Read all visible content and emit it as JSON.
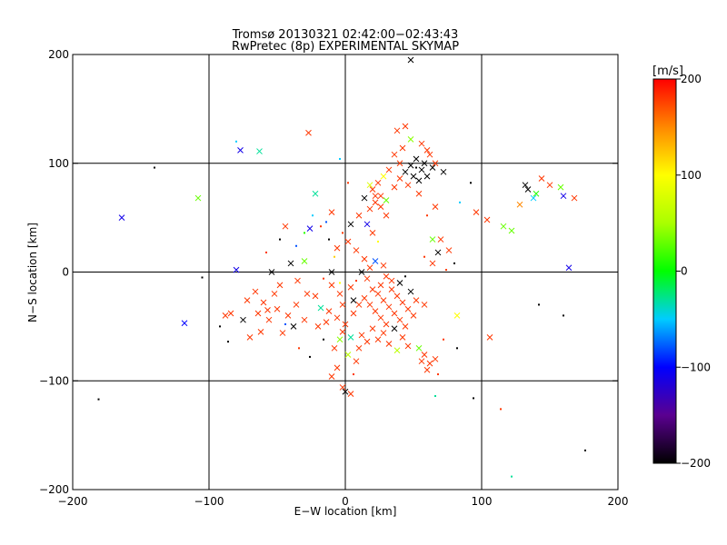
{
  "chart_data": {
    "type": "scatter",
    "title": "Tromsø 20130321 02:42:00−02:43:43",
    "subtitle": "RwPretec (8p) EXPERIMENTAL SKYMAP",
    "xlabel": "E−W location [km]",
    "ylabel": "N−S location [km]",
    "xlim": [
      -200,
      200
    ],
    "ylim": [
      -200,
      200
    ],
    "xticks": [
      -200,
      -100,
      0,
      100,
      200
    ],
    "yticks": [
      -200,
      -100,
      0,
      100,
      200
    ],
    "xtick_labels": [
      "−200",
      "−100",
      "0",
      "100",
      "200"
    ],
    "ytick_labels": [
      "−200",
      "−100",
      "0",
      "100",
      "200"
    ],
    "grid": true,
    "colorbar": {
      "label": "[m/s]",
      "range": [
        -200,
        200
      ],
      "ticks": [
        200,
        100,
        0,
        -100,
        -200
      ],
      "tick_labels": [
        "200",
        "100",
        "0",
        "−100",
        "−200"
      ]
    },
    "markers": {
      "cross": "x",
      "small": "dot"
    },
    "points": [
      [
        -164,
        50,
        -110,
        "x"
      ],
      [
        -108,
        68,
        30,
        "x"
      ],
      [
        -118,
        -47,
        -100,
        "x"
      ],
      [
        -140,
        96,
        -200,
        "dot"
      ],
      [
        -181,
        -117,
        -200,
        "dot"
      ],
      [
        -105,
        -5,
        -200,
        "dot"
      ],
      [
        -80,
        120,
        -50,
        "dot"
      ],
      [
        -77,
        112,
        -110,
        "x"
      ],
      [
        -63,
        111,
        -30,
        "x"
      ],
      [
        -27,
        128,
        180,
        "x"
      ],
      [
        -22,
        72,
        -30,
        "x"
      ],
      [
        -80,
        2,
        -110,
        "x"
      ],
      [
        -75,
        -44,
        -200,
        "x"
      ],
      [
        -84,
        -38,
        180,
        "x"
      ],
      [
        -70,
        -60,
        180,
        "x"
      ],
      [
        -62,
        -55,
        180,
        "x"
      ],
      [
        -57,
        -35,
        180,
        "x"
      ],
      [
        -52,
        -20,
        180,
        "x"
      ],
      [
        -46,
        -56,
        180,
        "x"
      ],
      [
        -44,
        42,
        180,
        "x"
      ],
      [
        -40,
        8,
        -200,
        "x"
      ],
      [
        -35,
        -8,
        180,
        "x"
      ],
      [
        -30,
        10,
        30,
        "x"
      ],
      [
        -26,
        40,
        -110,
        "x"
      ],
      [
        -22,
        -22,
        180,
        "x"
      ],
      [
        -18,
        -33,
        -30,
        "x"
      ],
      [
        -14,
        -46,
        180,
        "x"
      ],
      [
        -10,
        0,
        -200,
        "x"
      ],
      [
        -6,
        22,
        180,
        "x"
      ],
      [
        -2,
        -55,
        180,
        "x"
      ],
      [
        -28,
        -20,
        180,
        "x"
      ],
      [
        -36,
        -30,
        180,
        "x"
      ],
      [
        -42,
        -40,
        180,
        "x"
      ],
      [
        -48,
        -12,
        180,
        "x"
      ],
      [
        -54,
        0,
        -200,
        "x"
      ],
      [
        -60,
        -28,
        180,
        "x"
      ],
      [
        -66,
        -18,
        180,
        "x"
      ],
      [
        -72,
        -26,
        180,
        "x"
      ],
      [
        -88,
        -40,
        180,
        "x"
      ],
      [
        -92,
        -50,
        -200,
        "dot"
      ],
      [
        -86,
        -64,
        -200,
        "dot"
      ],
      [
        -58,
        18,
        180,
        "dot"
      ],
      [
        -48,
        30,
        -200,
        "dot"
      ],
      [
        -36,
        24,
        -80,
        "dot"
      ],
      [
        -30,
        36,
        10,
        "dot"
      ],
      [
        -24,
        52,
        -50,
        "dot"
      ],
      [
        -18,
        42,
        180,
        "dot"
      ],
      [
        -12,
        30,
        -200,
        "dot"
      ],
      [
        -8,
        14,
        120,
        "dot"
      ],
      [
        -4,
        -10,
        100,
        "dot"
      ],
      [
        -16,
        -62,
        -200,
        "dot"
      ],
      [
        -26,
        -78,
        -200,
        "dot"
      ],
      [
        -34,
        -70,
        180,
        "dot"
      ],
      [
        -44,
        -48,
        -80,
        "dot"
      ],
      [
        -4,
        104,
        -50,
        "dot"
      ],
      [
        2,
        82,
        180,
        "dot"
      ],
      [
        0,
        -110,
        -200,
        "x"
      ],
      [
        -2,
        -106,
        180,
        "x"
      ],
      [
        4,
        -112,
        180,
        "x"
      ],
      [
        -10,
        -96,
        180,
        "x"
      ],
      [
        -6,
        -88,
        180,
        "x"
      ],
      [
        6,
        -94,
        180,
        "dot"
      ],
      [
        8,
        -82,
        180,
        "x"
      ],
      [
        2,
        -76,
        60,
        "x"
      ],
      [
        10,
        -70,
        180,
        "x"
      ],
      [
        -8,
        -70,
        180,
        "x"
      ],
      [
        -4,
        -62,
        40,
        "x"
      ],
      [
        4,
        -60,
        -30,
        "x"
      ],
      [
        12,
        -58,
        180,
        "x"
      ],
      [
        16,
        -64,
        180,
        "x"
      ],
      [
        20,
        -52,
        180,
        "x"
      ],
      [
        0,
        -48,
        180,
        "x"
      ],
      [
        -6,
        -42,
        180,
        "x"
      ],
      [
        -12,
        -36,
        180,
        "x"
      ],
      [
        6,
        -38,
        180,
        "x"
      ],
      [
        10,
        -30,
        180,
        "x"
      ],
      [
        14,
        -24,
        180,
        "x"
      ],
      [
        18,
        -30,
        180,
        "x"
      ],
      [
        22,
        -36,
        180,
        "x"
      ],
      [
        26,
        -42,
        180,
        "x"
      ],
      [
        30,
        -48,
        180,
        "x"
      ],
      [
        24,
        -20,
        180,
        "x"
      ],
      [
        28,
        -26,
        180,
        "x"
      ],
      [
        32,
        -32,
        180,
        "x"
      ],
      [
        36,
        -38,
        180,
        "x"
      ],
      [
        40,
        -44,
        180,
        "x"
      ],
      [
        44,
        -50,
        180,
        "x"
      ],
      [
        20,
        -16,
        180,
        "x"
      ],
      [
        26,
        -12,
        180,
        "x"
      ],
      [
        34,
        -16,
        180,
        "x"
      ],
      [
        38,
        -22,
        180,
        "x"
      ],
      [
        42,
        -28,
        180,
        "x"
      ],
      [
        46,
        -34,
        180,
        "x"
      ],
      [
        50,
        -40,
        180,
        "x"
      ],
      [
        16,
        -6,
        180,
        "x"
      ],
      [
        30,
        -4,
        180,
        "x"
      ],
      [
        40,
        -10,
        -200,
        "x"
      ],
      [
        48,
        -18,
        -200,
        "x"
      ],
      [
        52,
        -26,
        180,
        "x"
      ],
      [
        58,
        -30,
        180,
        "x"
      ],
      [
        36,
        -52,
        -200,
        "x"
      ],
      [
        28,
        -56,
        180,
        "x"
      ],
      [
        24,
        -62,
        180,
        "x"
      ],
      [
        32,
        -66,
        180,
        "x"
      ],
      [
        42,
        -60,
        180,
        "x"
      ],
      [
        38,
        -72,
        60,
        "x"
      ],
      [
        46,
        -68,
        180,
        "x"
      ],
      [
        54,
        -70,
        30,
        "x"
      ],
      [
        58,
        -76,
        180,
        "x"
      ],
      [
        62,
        -84,
        180,
        "x"
      ],
      [
        56,
        -82,
        180,
        "x"
      ],
      [
        66,
        -80,
        180,
        "x"
      ],
      [
        72,
        -62,
        180,
        "dot"
      ],
      [
        60,
        -90,
        180,
        "x"
      ],
      [
        68,
        -94,
        180,
        "dot"
      ],
      [
        -4,
        -20,
        180,
        "x"
      ],
      [
        -10,
        -12,
        180,
        "x"
      ],
      [
        -16,
        -6,
        180,
        "dot"
      ],
      [
        4,
        -14,
        180,
        "x"
      ],
      [
        8,
        -8,
        180,
        "dot"
      ],
      [
        12,
        0,
        -200,
        "x"
      ],
      [
        18,
        4,
        180,
        "x"
      ],
      [
        22,
        10,
        -80,
        "x"
      ],
      [
        28,
        6,
        180,
        "x"
      ],
      [
        14,
        12,
        180,
        "x"
      ],
      [
        8,
        20,
        180,
        "x"
      ],
      [
        2,
        28,
        180,
        "x"
      ],
      [
        -2,
        36,
        180,
        "dot"
      ],
      [
        4,
        44,
        -200,
        "x"
      ],
      [
        10,
        52,
        180,
        "x"
      ],
      [
        16,
        44,
        -110,
        "x"
      ],
      [
        20,
        36,
        180,
        "x"
      ],
      [
        24,
        28,
        100,
        "dot"
      ],
      [
        18,
        58,
        180,
        "x"
      ],
      [
        22,
        64,
        180,
        "x"
      ],
      [
        26,
        70,
        180,
        "x"
      ],
      [
        20,
        76,
        180,
        "x"
      ],
      [
        24,
        82,
        180,
        "x"
      ],
      [
        28,
        88,
        100,
        "x"
      ],
      [
        32,
        94,
        180,
        "x"
      ],
      [
        26,
        60,
        180,
        "x"
      ],
      [
        30,
        66,
        30,
        "x"
      ],
      [
        22,
        70,
        180,
        "x"
      ],
      [
        14,
        68,
        -200,
        "x"
      ],
      [
        18,
        80,
        80,
        "x"
      ],
      [
        30,
        52,
        180,
        "x"
      ],
      [
        36,
        78,
        180,
        "x"
      ],
      [
        40,
        86,
        180,
        "x"
      ],
      [
        44,
        92,
        -200,
        "x"
      ],
      [
        48,
        98,
        -200,
        "x"
      ],
      [
        52,
        104,
        -200,
        "x"
      ],
      [
        56,
        94,
        -200,
        "x"
      ],
      [
        60,
        88,
        -200,
        "x"
      ],
      [
        64,
        96,
        -200,
        "x"
      ],
      [
        58,
        100,
        -200,
        "x"
      ],
      [
        50,
        88,
        -200,
        "x"
      ],
      [
        54,
        84,
        -200,
        "x"
      ],
      [
        46,
        80,
        180,
        "x"
      ],
      [
        40,
        100,
        180,
        "x"
      ],
      [
        36,
        108,
        180,
        "x"
      ],
      [
        42,
        114,
        180,
        "x"
      ],
      [
        48,
        122,
        40,
        "x"
      ],
      [
        56,
        118,
        180,
        "x"
      ],
      [
        60,
        112,
        180,
        "x"
      ],
      [
        38,
        130,
        180,
        "x"
      ],
      [
        44,
        134,
        180,
        "x"
      ],
      [
        62,
        108,
        180,
        "x"
      ],
      [
        66,
        100,
        180,
        "x"
      ],
      [
        72,
        92,
        -200,
        "x"
      ],
      [
        52,
        96,
        -200,
        "dot"
      ],
      [
        54,
        72,
        180,
        "x"
      ],
      [
        66,
        60,
        180,
        "x"
      ],
      [
        60,
        52,
        180,
        "dot"
      ],
      [
        70,
        30,
        180,
        "x"
      ],
      [
        76,
        20,
        180,
        "x"
      ],
      [
        68,
        18,
        -200,
        "x"
      ],
      [
        80,
        8,
        -200,
        "dot"
      ],
      [
        74,
        2,
        180,
        "dot"
      ],
      [
        64,
        8,
        180,
        "x"
      ],
      [
        58,
        14,
        180,
        "dot"
      ],
      [
        48,
        195,
        -200,
        "x"
      ],
      [
        64,
        30,
        30,
        "x"
      ],
      [
        96,
        55,
        180,
        "x"
      ],
      [
        104,
        48,
        180,
        "x"
      ],
      [
        116,
        42,
        30,
        "x"
      ],
      [
        122,
        38,
        30,
        "x"
      ],
      [
        128,
        62,
        150,
        "x"
      ],
      [
        132,
        80,
        -200,
        "x"
      ],
      [
        134,
        76,
        -200,
        "x"
      ],
      [
        138,
        68,
        -50,
        "x"
      ],
      [
        140,
        72,
        10,
        "x"
      ],
      [
        144,
        86,
        180,
        "x"
      ],
      [
        150,
        80,
        180,
        "x"
      ],
      [
        158,
        78,
        30,
        "x"
      ],
      [
        160,
        70,
        -110,
        "x"
      ],
      [
        168,
        68,
        180,
        "x"
      ],
      [
        164,
        4,
        -110,
        "x"
      ],
      [
        142,
        -30,
        -200,
        "dot"
      ],
      [
        160,
        -40,
        -200,
        "dot"
      ],
      [
        106,
        -60,
        180,
        "x"
      ],
      [
        114,
        -126,
        180,
        "dot"
      ],
      [
        94,
        -116,
        -200,
        "dot"
      ],
      [
        82,
        -40,
        100,
        "x"
      ],
      [
        82,
        -70,
        -200,
        "dot"
      ],
      [
        176,
        -164,
        -200,
        "dot"
      ],
      [
        122,
        -188,
        -30,
        "dot"
      ],
      [
        66,
        -114,
        -30,
        "dot"
      ],
      [
        92,
        82,
        -200,
        "dot"
      ],
      [
        84,
        64,
        -50,
        "dot"
      ],
      [
        -10,
        55,
        180,
        "x"
      ],
      [
        -14,
        46,
        -80,
        "dot"
      ],
      [
        -20,
        -50,
        180,
        "x"
      ],
      [
        -30,
        -44,
        180,
        "x"
      ],
      [
        -38,
        -50,
        -200,
        "x"
      ],
      [
        -50,
        -34,
        180,
        "x"
      ],
      [
        -56,
        -44,
        180,
        "x"
      ],
      [
        -64,
        -38,
        180,
        "x"
      ],
      [
        -2,
        -30,
        180,
        "x"
      ],
      [
        6,
        -26,
        -200,
        "x"
      ],
      [
        34,
        -8,
        180,
        "x"
      ],
      [
        44,
        -4,
        -200,
        "dot"
      ]
    ]
  }
}
